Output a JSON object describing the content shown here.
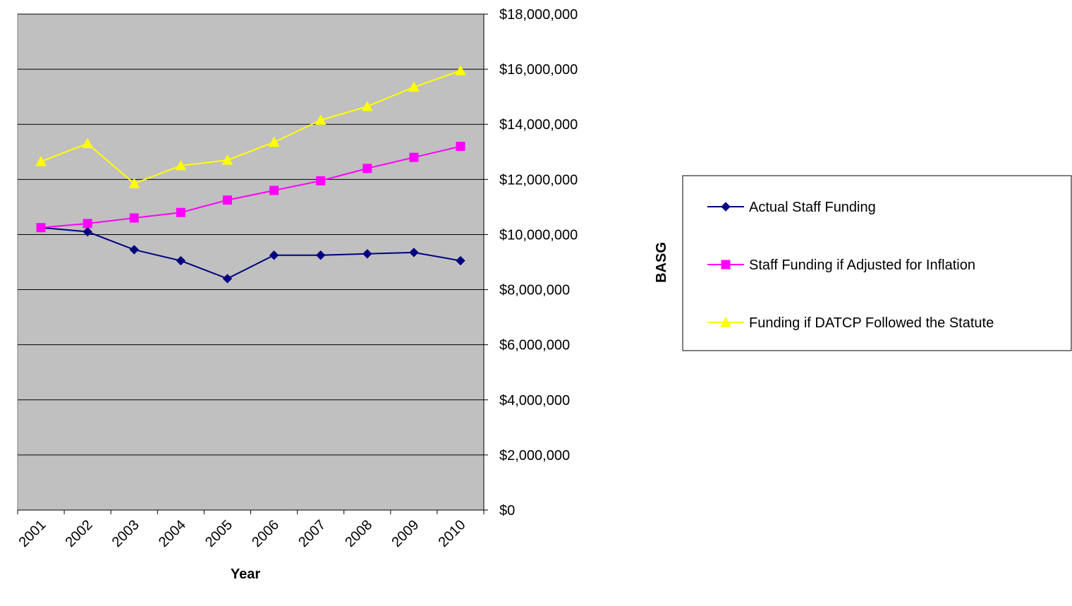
{
  "chart_data": {
    "type": "line",
    "x_label": "Year",
    "y_label": "BASG",
    "categories": [
      "2001",
      "2002",
      "2003",
      "2004",
      "2005",
      "2006",
      "2007",
      "2008",
      "2009",
      "2010"
    ],
    "series": [
      {
        "name": "Actual Staff Funding",
        "color": "#000080",
        "marker": "diamond",
        "values": [
          10250000,
          10100000,
          9450000,
          9050000,
          8400000,
          9250000,
          9250000,
          9300000,
          9350000,
          9050000
        ]
      },
      {
        "name": "Staff Funding if Adjusted for Inflation",
        "color": "#ff00ff",
        "marker": "square",
        "values": [
          10250000,
          10400000,
          10600000,
          10800000,
          11250000,
          11600000,
          11950000,
          12400000,
          12800000,
          13200000
        ]
      },
      {
        "name": "Funding if DATCP Followed the Statute",
        "color": "#ffff00",
        "marker": "triangle",
        "values": [
          12650000,
          13300000,
          11850000,
          12500000,
          12700000,
          13350000,
          14150000,
          14650000,
          15350000,
          15950000
        ]
      }
    ],
    "ylim": [
      0,
      18000000
    ],
    "yticks": [
      {
        "value": 0,
        "label": "$0"
      },
      {
        "value": 2000000,
        "label": "$2,000,000"
      },
      {
        "value": 4000000,
        "label": "$4,000,000"
      },
      {
        "value": 6000000,
        "label": "$6,000,000"
      },
      {
        "value": 8000000,
        "label": "$8,000,000"
      },
      {
        "value": 10000000,
        "label": "$10,000,000"
      },
      {
        "value": 12000000,
        "label": "$12,000,000"
      },
      {
        "value": 14000000,
        "label": "$14,000,000"
      },
      {
        "value": 16000000,
        "label": "$16,000,000"
      },
      {
        "value": 18000000,
        "label": "$18,000,000"
      }
    ],
    "grid": true,
    "legend": "right"
  }
}
